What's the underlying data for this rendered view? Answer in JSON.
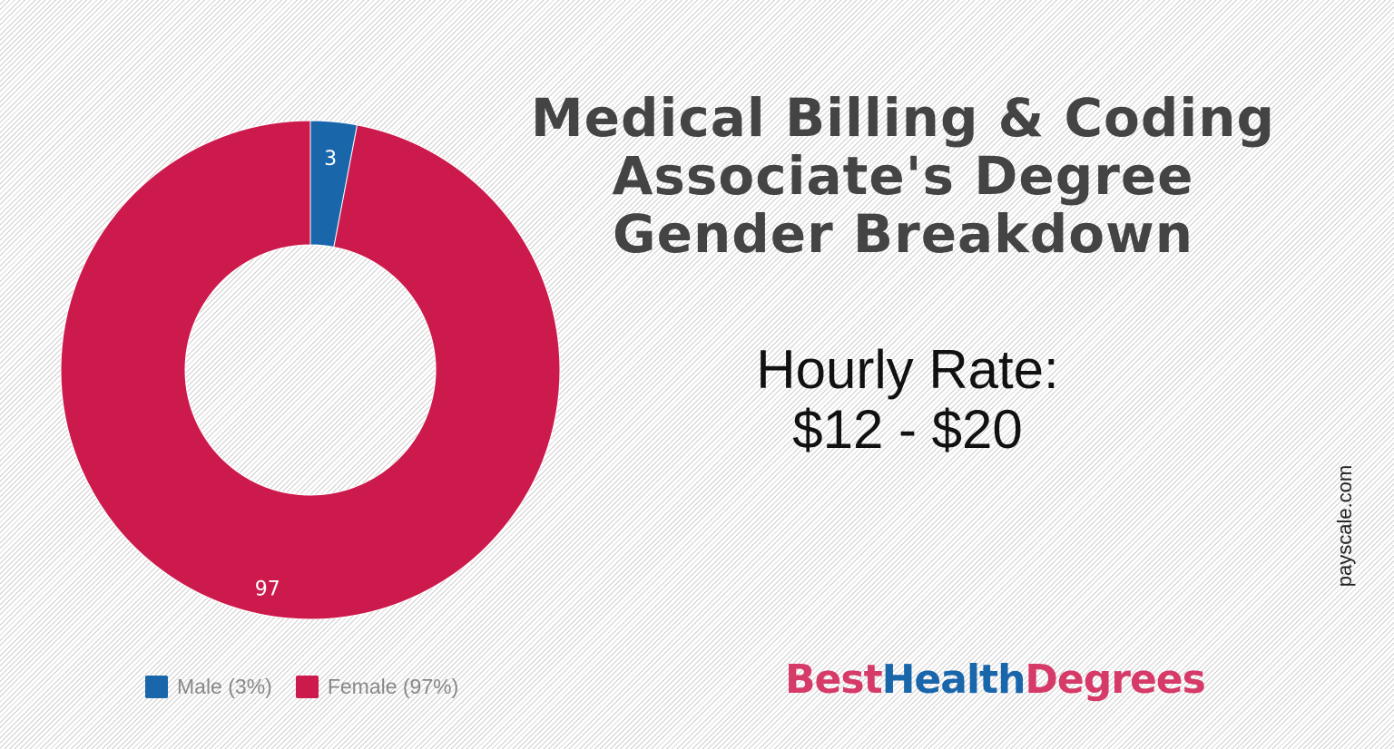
{
  "chart_data": {
    "type": "pie",
    "donut": true,
    "categories": [
      "Male",
      "Female"
    ],
    "values": [
      3,
      97
    ],
    "colors": [
      "#1a66ab",
      "#cc1a4c"
    ],
    "data_labels": [
      "3",
      "97"
    ],
    "legend": [
      "Male (3%)",
      "Female (97%)"
    ],
    "legend_position": "bottom-left"
  },
  "title_lines": [
    "Medical Billing & Coding",
    "Associate's Degree",
    "Gender Breakdown"
  ],
  "rate": {
    "label": "Hourly Rate:",
    "value": "$12 - $20"
  },
  "source": "payscale.com",
  "logo": {
    "parts": [
      "Best",
      "Health",
      "Degrees"
    ],
    "colors": [
      "#d63a68",
      "#1a66ab",
      "#d63a68"
    ]
  }
}
